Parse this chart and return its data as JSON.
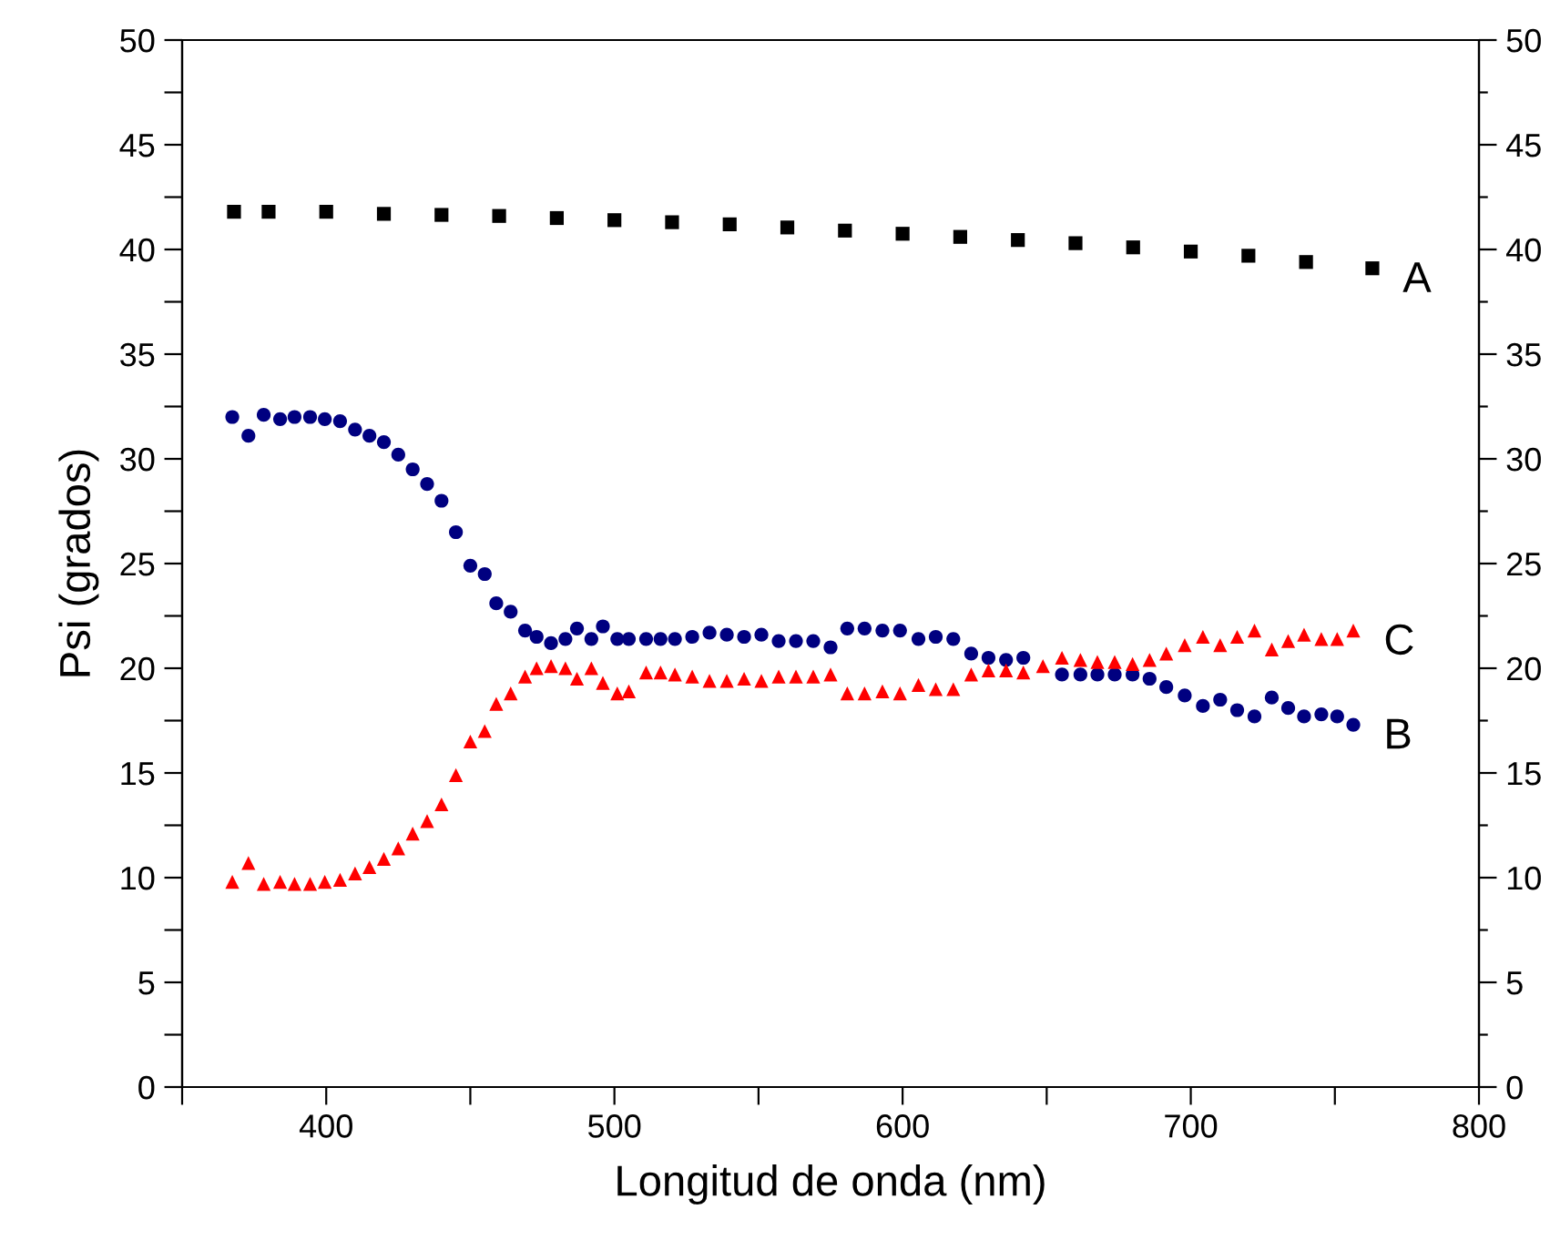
{
  "chart_data": {
    "type": "scatter",
    "xlabel": "Longitud de onda (nm)",
    "ylabel": "Psi (grados)",
    "xlim": [
      350,
      800
    ],
    "xticks": [
      {
        "value": 350,
        "label": null
      },
      400,
      {
        "value": 450,
        "label": null
      },
      500,
      {
        "value": 550,
        "label": null
      },
      600,
      {
        "value": 650,
        "label": null
      },
      700,
      {
        "value": 750,
        "label": null
      },
      800
    ],
    "ylim": [
      0,
      50
    ],
    "yticks": [
      0,
      {
        "value": 2.5,
        "label": null
      },
      5,
      {
        "value": 7.5,
        "label": null
      },
      10,
      {
        "value": 12.5,
        "label": null
      },
      15,
      {
        "value": 17.5,
        "label": null
      },
      20,
      {
        "value": 22.5,
        "label": null
      },
      25,
      {
        "value": 27.5,
        "label": null
      },
      30,
      {
        "value": 32.5,
        "label": null
      },
      35,
      {
        "value": 37.5,
        "label": null
      },
      40,
      {
        "value": 42.5,
        "label": null
      },
      45,
      {
        "value": 47.5,
        "label": null
      },
      50
    ],
    "y2lim": [
      0,
      50
    ],
    "y2ticks": [
      0,
      {
        "value": 2.5,
        "label": null
      },
      5,
      {
        "value": 7.5,
        "label": null
      },
      10,
      {
        "value": 12.5,
        "label": null
      },
      15,
      {
        "value": 17.5,
        "label": null
      },
      20,
      {
        "value": 22.5,
        "label": null
      },
      25,
      {
        "value": 27.5,
        "label": null
      },
      30,
      {
        "value": 32.5,
        "label": null
      },
      35,
      {
        "value": 37.5,
        "label": null
      },
      40,
      {
        "value": 42.5,
        "label": null
      },
      45,
      {
        "value": 47.5,
        "label": null
      },
      50
    ],
    "grid": false,
    "legend": false,
    "series": [
      {
        "name": "A",
        "color": "#000000",
        "marker": "square",
        "x": [
          368,
          380,
          400,
          420,
          440,
          460,
          480,
          500,
          520,
          540,
          560,
          580,
          600,
          620,
          640,
          660,
          680,
          700,
          720,
          740,
          763
        ],
        "values": [
          41.8,
          41.8,
          41.8,
          41.7,
          41.65,
          41.6,
          41.5,
          41.4,
          41.3,
          41.2,
          41.05,
          40.9,
          40.75,
          40.6,
          40.45,
          40.3,
          40.1,
          39.9,
          39.7,
          39.4,
          39.1
        ]
      },
      {
        "name": "B",
        "color": "#000080",
        "marker": "circle",
        "x": [
          367.4,
          373,
          378.3,
          384,
          389,
          394.4,
          399.5,
          404.8,
          410,
          415,
          420,
          425,
          430,
          435,
          440,
          445,
          450,
          455,
          459,
          464,
          469,
          473,
          478,
          483,
          487,
          492,
          496,
          501,
          505,
          511,
          516,
          521,
          527,
          533,
          539,
          545,
          551,
          557,
          563,
          569,
          575,
          580.8,
          586.8,
          593,
          599.1,
          605.5,
          611.5,
          617.6,
          623.8,
          629.8,
          635.9,
          641.9,
          655.3,
          661.7,
          667.6,
          673.6,
          679.8,
          685.7,
          691.5,
          697.9,
          704.2,
          710.2,
          716.1,
          722.1,
          728.1,
          733.8,
          739.3,
          745.3,
          750.8,
          756.4
        ],
        "values": [
          32.0,
          31.1,
          32.1,
          31.9,
          32.0,
          32.0,
          31.9,
          31.8,
          31.4,
          31.1,
          30.8,
          30.2,
          29.5,
          28.8,
          28.0,
          26.5,
          24.9,
          24.5,
          23.1,
          22.7,
          21.8,
          21.5,
          21.2,
          21.4,
          21.9,
          21.4,
          22.0,
          21.4,
          21.4,
          21.4,
          21.4,
          21.4,
          21.5,
          21.7,
          21.6,
          21.5,
          21.6,
          21.3,
          21.3,
          21.3,
          21.0,
          21.9,
          21.9,
          21.8,
          21.8,
          21.4,
          21.5,
          21.4,
          20.7,
          20.5,
          20.4,
          20.5,
          19.7,
          19.7,
          19.7,
          19.7,
          19.7,
          19.5,
          19.1,
          18.7,
          18.2,
          18.5,
          18.0,
          17.7,
          18.6,
          18.1,
          17.7,
          17.8,
          17.7,
          17.3
        ]
      },
      {
        "name": "C",
        "color": "#ff0000",
        "marker": "triangle",
        "x": [
          367.4,
          373,
          378.3,
          384,
          389,
          394.4,
          399.5,
          404.8,
          410,
          415,
          420,
          425,
          430,
          435,
          440,
          445,
          450,
          455,
          459,
          464,
          469,
          473,
          478,
          483,
          487,
          492,
          496,
          501,
          505,
          511,
          516,
          521,
          527,
          533,
          539,
          545,
          551,
          557,
          563,
          569,
          575,
          580.8,
          586.8,
          593,
          599.1,
          605.5,
          611.5,
          617.6,
          623.8,
          629.8,
          635.9,
          641.9,
          648.7,
          655.3,
          661.7,
          667.6,
          673.6,
          679.8,
          685.7,
          691.5,
          697.9,
          704.2,
          710.2,
          716.1,
          722.1,
          728.1,
          733.8,
          739.3,
          745.3,
          750.8,
          756.4
        ],
        "values": [
          9.8,
          10.7,
          9.7,
          9.8,
          9.7,
          9.7,
          9.8,
          9.9,
          10.2,
          10.5,
          10.9,
          11.4,
          12.1,
          12.7,
          13.5,
          14.9,
          16.5,
          17.0,
          18.3,
          18.8,
          19.6,
          20.0,
          20.1,
          20.0,
          19.5,
          20.0,
          19.3,
          18.8,
          18.9,
          19.8,
          19.8,
          19.7,
          19.6,
          19.4,
          19.4,
          19.5,
          19.4,
          19.6,
          19.6,
          19.6,
          19.7,
          18.8,
          18.8,
          18.9,
          18.8,
          19.2,
          19.0,
          19.0,
          19.7,
          19.9,
          19.9,
          19.8,
          20.1,
          20.5,
          20.4,
          20.3,
          20.3,
          20.2,
          20.4,
          20.7,
          21.1,
          21.5,
          21.1,
          21.5,
          21.8,
          20.9,
          21.3,
          21.6,
          21.4,
          21.4,
          21.8
        ]
      }
    ]
  }
}
